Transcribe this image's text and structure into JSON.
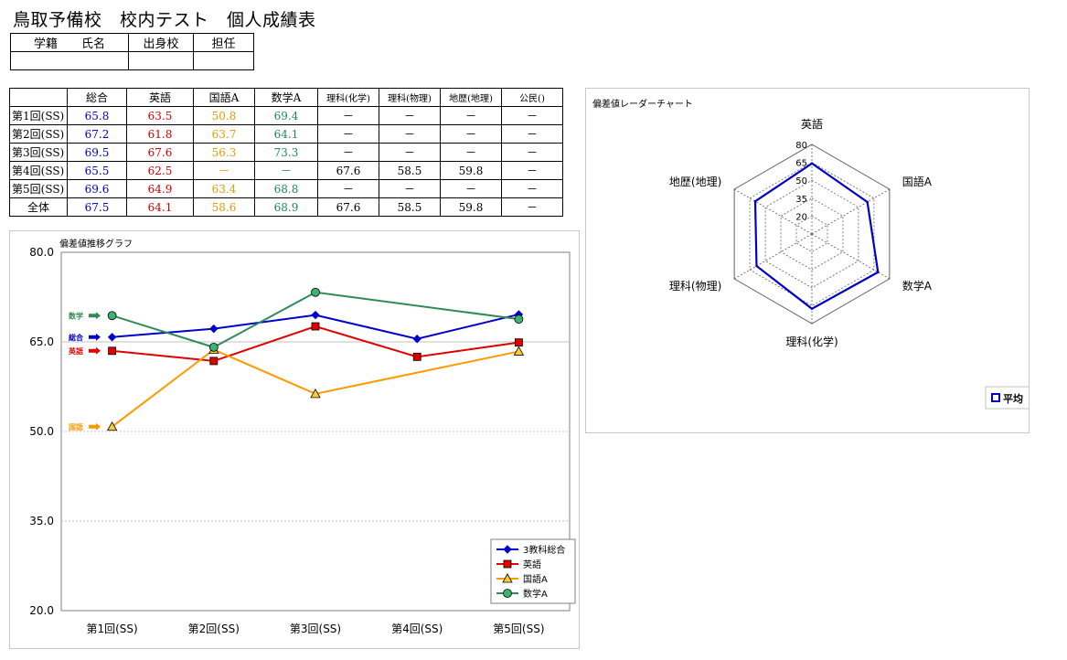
{
  "title": "鳥取予備校　校内テスト　個人成績表",
  "info_headers": [
    "学籍　　氏名",
    "出身校",
    "担任"
  ],
  "score_table": {
    "columns": [
      "総合",
      "英語",
      "国語A",
      "数学A",
      "理科(化学)",
      "理科(物理)",
      "地歴(地理)",
      "公民()"
    ],
    "rows": [
      {
        "label": "第1回(SS)",
        "cells": [
          "65.8",
          "63.5",
          "50.8",
          "69.4",
          "－",
          "－",
          "－",
          "－"
        ]
      },
      {
        "label": "第2回(SS)",
        "cells": [
          "67.2",
          "61.8",
          "63.7",
          "64.1",
          "－",
          "－",
          "－",
          "－"
        ]
      },
      {
        "label": "第3回(SS)",
        "cells": [
          "69.5",
          "67.6",
          "56.3",
          "73.3",
          "－",
          "－",
          "－",
          "－"
        ]
      },
      {
        "label": "第4回(SS)",
        "cells": [
          "65.5",
          "62.5",
          "－",
          "－",
          "67.6",
          "58.5",
          "59.8",
          "－"
        ]
      },
      {
        "label": "第5回(SS)",
        "cells": [
          "69.6",
          "64.9",
          "63.4",
          "68.8",
          "－",
          "－",
          "－",
          "－"
        ]
      },
      {
        "label": "全体",
        "cells": [
          "67.5",
          "64.1",
          "58.6",
          "68.9",
          "67.6",
          "58.5",
          "59.8",
          "－"
        ]
      }
    ]
  },
  "chart_data": [
    {
      "type": "line",
      "title": "偏差値推移グラフ",
      "categories": [
        "第1回(SS)",
        "第2回(SS)",
        "第3回(SS)",
        "第4回(SS)",
        "第5回(SS)"
      ],
      "ylim": [
        20,
        80
      ],
      "yticks": [
        "20.0",
        "35.0",
        "50.0",
        "65.0",
        "80.0"
      ],
      "series": [
        {
          "name": "3教科総合",
          "values": [
            65.8,
            67.2,
            69.5,
            65.5,
            69.6
          ],
          "color": "#0000cc",
          "marker": "diamond"
        },
        {
          "name": "英語",
          "values": [
            63.5,
            61.8,
            67.6,
            62.5,
            64.9
          ],
          "color": "#e00000",
          "marker": "square"
        },
        {
          "name": "国語A",
          "values": [
            50.8,
            63.7,
            56.3,
            null,
            63.4
          ],
          "color": "#ff9900",
          "marker": "triangle"
        },
        {
          "name": "数学A",
          "values": [
            69.4,
            64.1,
            73.3,
            null,
            68.8
          ],
          "color": "#2e8b57",
          "marker": "circle"
        }
      ],
      "side_labels": [
        {
          "text": "数学",
          "series": 3,
          "color": "#2e8b57"
        },
        {
          "text": "総合",
          "series": 0,
          "color": "#0000cc"
        },
        {
          "text": "英語",
          "series": 1,
          "color": "#e00000"
        },
        {
          "text": "国語",
          "series": 2,
          "color": "#ff9900"
        }
      ],
      "legend": "bottom-right"
    },
    {
      "type": "radar",
      "title": "偏差値レーダーチャート",
      "axes": [
        "英語",
        "国語A",
        "数学A",
        "理科(化学)",
        "理科(物理)",
        "地歴(地理)"
      ],
      "values": [
        64.1,
        58.6,
        68.9,
        67.6,
        58.5,
        59.8
      ],
      "rlim": [
        5,
        80
      ],
      "rticks": [
        "20",
        "35",
        "50",
        "65",
        "80"
      ],
      "series_name": "平均",
      "color": "#0000cc",
      "legend": "bottom-right"
    }
  ]
}
